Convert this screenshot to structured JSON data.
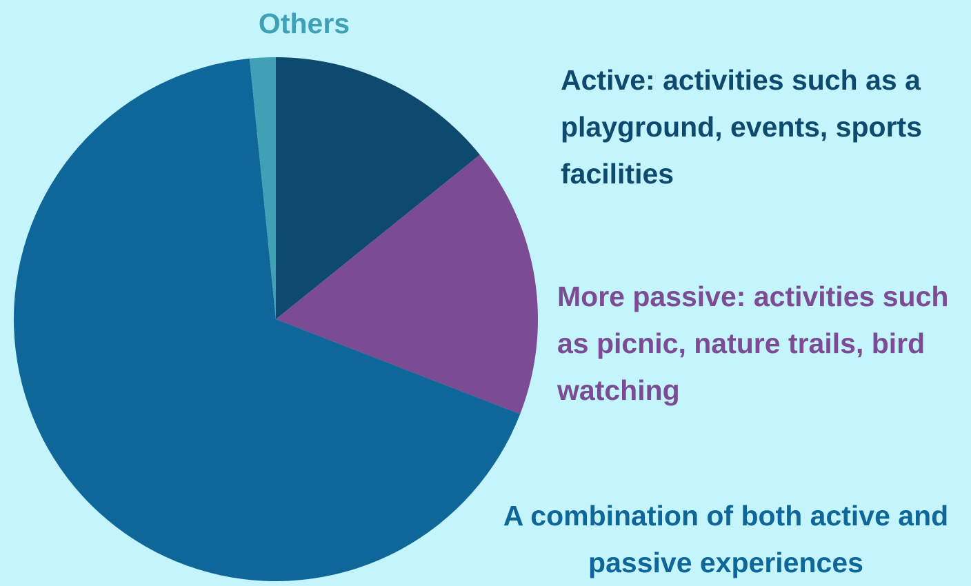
{
  "chart_data": {
    "type": "pie",
    "categories": [
      "Active: activities such as a playground, events, sports facilities",
      "More passive: activities such as picnic, nature trails, bird watching",
      "A combination of both active and passive experiences",
      "Others"
    ],
    "values": [
      14.2,
      16.7,
      67.5,
      1.6
    ],
    "colors": [
      "#0d4a6e",
      "#7b4b94",
      "#0f6698",
      "#40a0b5"
    ]
  }
}
